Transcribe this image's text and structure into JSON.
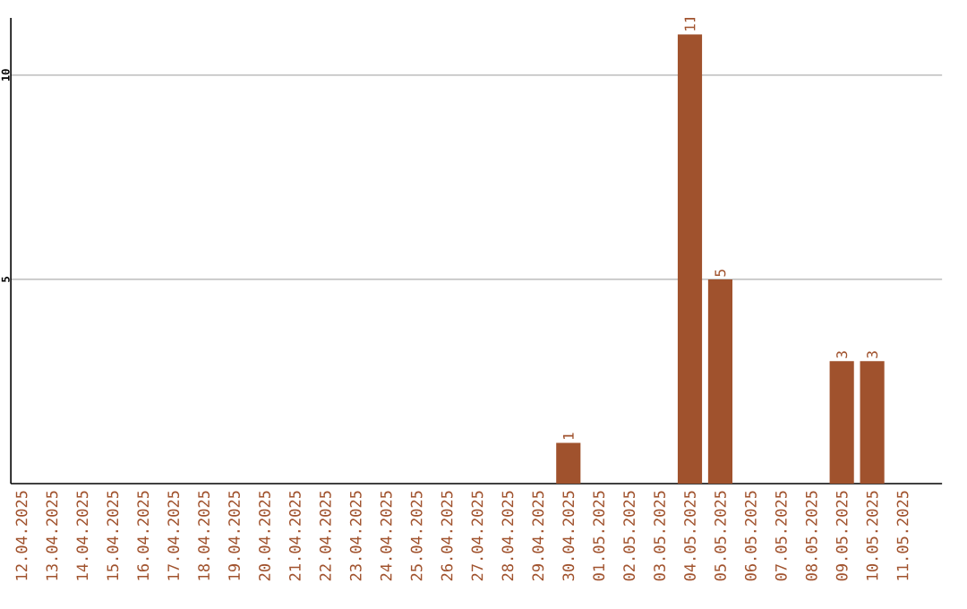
{
  "chart_data": {
    "type": "bar",
    "categories": [
      "12.04.2025",
      "13.04.2025",
      "14.04.2025",
      "15.04.2025",
      "16.04.2025",
      "17.04.2025",
      "18.04.2025",
      "19.04.2025",
      "20.04.2025",
      "21.04.2025",
      "22.04.2025",
      "23.04.2025",
      "24.04.2025",
      "25.04.2025",
      "26.04.2025",
      "27.04.2025",
      "28.04.2025",
      "29.04.2025",
      "30.04.2025",
      "01.05.2025",
      "02.05.2025",
      "03.05.2025",
      "04.05.2025",
      "05.05.2025",
      "06.05.2025",
      "07.05.2025",
      "08.05.2025",
      "09.05.2025",
      "10.05.2025",
      "11.05.2025"
    ],
    "values": [
      0,
      0,
      0,
      0,
      0,
      0,
      0,
      0,
      0,
      0,
      0,
      0,
      0,
      0,
      0,
      0,
      0,
      0,
      1,
      0,
      0,
      0,
      11,
      5,
      0,
      0,
      0,
      3,
      3,
      0
    ],
    "value_labels": [
      null,
      null,
      null,
      null,
      null,
      null,
      null,
      null,
      null,
      null,
      null,
      null,
      null,
      null,
      null,
      null,
      null,
      null,
      "1",
      null,
      null,
      null,
      "11",
      "5",
      null,
      null,
      null,
      "3",
      "3",
      null
    ],
    "color": "#a0522d",
    "ylim": [
      0,
      11.4
    ],
    "yticks": [
      5,
      10
    ],
    "grid": "y"
  }
}
